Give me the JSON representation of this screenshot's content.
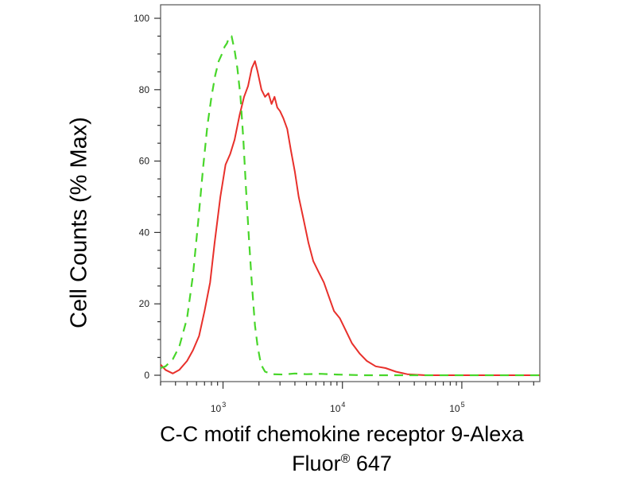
{
  "chart_data": {
    "type": "line",
    "title": "",
    "ylabel": "Cell Counts (% Max)",
    "xlabel_line1": "C-C motif chemokine receptor 9-Alexa",
    "xlabel_line2_main": "Fluor",
    "xlabel_line2_sup": "®",
    "xlabel_line2_tail": " 647",
    "x_scale": "log",
    "xlim": [
      300,
      450000
    ],
    "ylim": [
      0,
      100
    ],
    "yticks": [
      0,
      20,
      40,
      60,
      80,
      100
    ],
    "ytick_labels": [
      "0",
      "20",
      "40",
      "60",
      "80",
      "100"
    ],
    "xticks": [
      1000,
      10000,
      100000
    ],
    "xtick_labels": [
      {
        "base": "10",
        "exp": "3"
      },
      {
        "base": "10",
        "exp": "4"
      },
      {
        "base": "10",
        "exp": "5"
      }
    ],
    "grid": false,
    "series": [
      {
        "color": "#e8302b",
        "style": "solid",
        "points": [
          [
            300,
            3
          ],
          [
            330,
            1.5
          ],
          [
            380,
            0.5
          ],
          [
            430,
            1.5
          ],
          [
            500,
            4
          ],
          [
            560,
            7
          ],
          [
            630,
            11
          ],
          [
            700,
            18
          ],
          [
            780,
            26
          ],
          [
            850,
            37
          ],
          [
            950,
            50
          ],
          [
            1050,
            59
          ],
          [
            1150,
            62
          ],
          [
            1250,
            66
          ],
          [
            1380,
            73
          ],
          [
            1500,
            78
          ],
          [
            1620,
            81
          ],
          [
            1740,
            86
          ],
          [
            1850,
            88
          ],
          [
            1950,
            85
          ],
          [
            2100,
            80
          ],
          [
            2250,
            78
          ],
          [
            2400,
            79
          ],
          [
            2550,
            76
          ],
          [
            2700,
            78
          ],
          [
            2850,
            75
          ],
          [
            3000,
            74
          ],
          [
            3200,
            72
          ],
          [
            3450,
            69
          ],
          [
            3700,
            63
          ],
          [
            4000,
            57
          ],
          [
            4300,
            50
          ],
          [
            4700,
            44
          ],
          [
            5200,
            37
          ],
          [
            5700,
            32
          ],
          [
            6300,
            29
          ],
          [
            7000,
            26
          ],
          [
            7700,
            22
          ],
          [
            8500,
            18
          ],
          [
            9500,
            16
          ],
          [
            10500,
            13
          ],
          [
            12000,
            9
          ],
          [
            14000,
            6
          ],
          [
            16000,
            4
          ],
          [
            19000,
            2.5
          ],
          [
            23000,
            2
          ],
          [
            28000,
            1
          ],
          [
            35000,
            0.3
          ],
          [
            50000,
            0
          ],
          [
            100000,
            0
          ],
          [
            450000,
            0
          ]
        ]
      },
      {
        "color": "#48d62a",
        "style": "dashed",
        "points": [
          [
            300,
            2
          ],
          [
            330,
            2.5
          ],
          [
            380,
            4.5
          ],
          [
            430,
            8
          ],
          [
            500,
            16
          ],
          [
            560,
            28
          ],
          [
            620,
            43
          ],
          [
            680,
            58
          ],
          [
            740,
            70
          ],
          [
            800,
            78
          ],
          [
            860,
            84
          ],
          [
            920,
            88
          ],
          [
            980,
            90
          ],
          [
            1030,
            92
          ],
          [
            1080,
            93
          ],
          [
            1130,
            95
          ],
          [
            1180,
            95
          ],
          [
            1250,
            91
          ],
          [
            1320,
            86
          ],
          [
            1400,
            78
          ],
          [
            1480,
            66
          ],
          [
            1560,
            52
          ],
          [
            1650,
            38
          ],
          [
            1750,
            25
          ],
          [
            1850,
            14
          ],
          [
            1950,
            8
          ],
          [
            2080,
            3
          ],
          [
            2250,
            1
          ],
          [
            2600,
            0.3
          ],
          [
            3200,
            0.2
          ],
          [
            4000,
            0.5
          ],
          [
            5000,
            0.3
          ],
          [
            6500,
            0.4
          ],
          [
            9000,
            0.2
          ],
          [
            15000,
            0
          ],
          [
            450000,
            0
          ]
        ]
      }
    ]
  }
}
